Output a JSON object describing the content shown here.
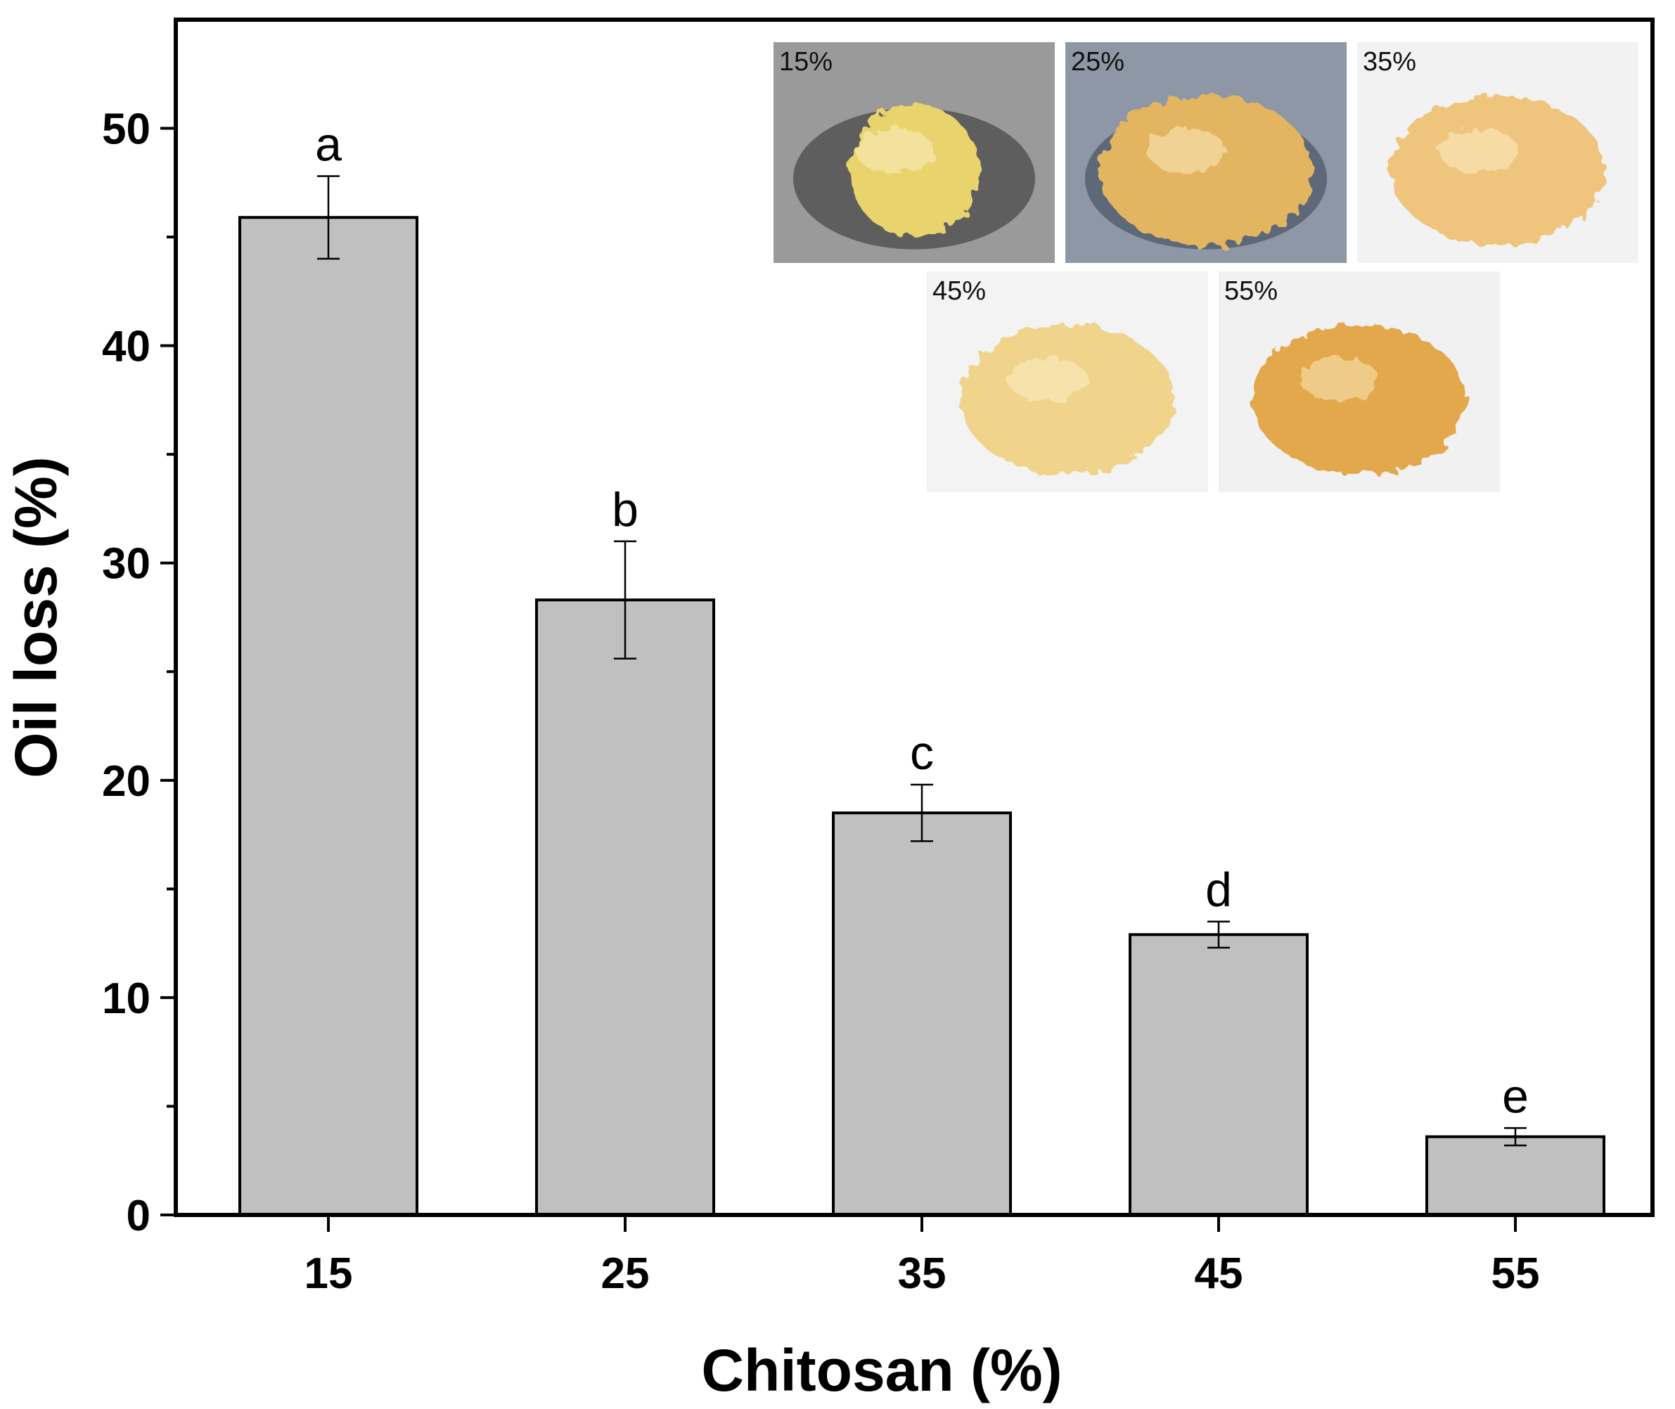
{
  "chart_data": {
    "type": "bar",
    "xlabel": "Chitosan (%)",
    "ylabel": "Oil loss (%)",
    "categories": [
      "15",
      "25",
      "35",
      "45",
      "55"
    ],
    "values": [
      45.9,
      28.3,
      18.5,
      12.9,
      3.6
    ],
    "errors": [
      1.9,
      2.7,
      1.3,
      0.6,
      0.4
    ],
    "significance_labels": [
      "a",
      "b",
      "c",
      "d",
      "e"
    ],
    "ylim": [
      0,
      55
    ],
    "yticks": [
      "0",
      "10",
      "20",
      "30",
      "40",
      "50"
    ],
    "bar_color": "#c0c0c0",
    "grid": false,
    "legend": "none",
    "inset_photos": [
      {
        "label": "15%",
        "tone": "#e9d36d",
        "background": "#9a9a9a"
      },
      {
        "label": "25%",
        "tone": "#e4b560",
        "background": "#8d97a6"
      },
      {
        "label": "35%",
        "tone": "#efc57d",
        "background": "#f2f2f2"
      },
      {
        "label": "45%",
        "tone": "#f0d48b",
        "background": "#f3f3f3"
      },
      {
        "label": "55%",
        "tone": "#e3a84c",
        "background": "#f1f1f1"
      }
    ]
  }
}
